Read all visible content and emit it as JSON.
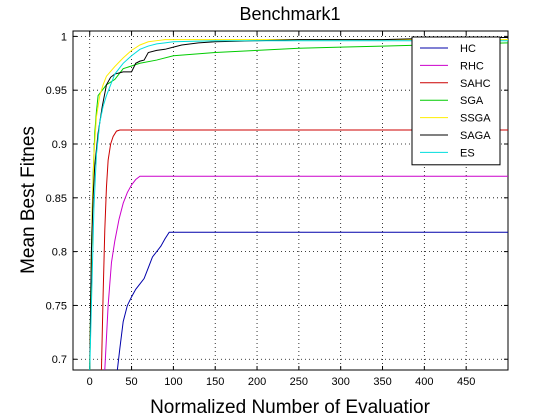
{
  "chart_data": {
    "type": "line",
    "title": "Benchmark1",
    "xlabel": "Normalized Number of Evaluatior",
    "ylabel": "Mean Best Fitnes",
    "xlim": [
      -20,
      500
    ],
    "ylim": [
      0.69,
      1.005
    ],
    "xticks": [
      0,
      50,
      100,
      150,
      200,
      250,
      300,
      350,
      400,
      450
    ],
    "yticks": [
      0.7,
      0.75,
      0.8,
      0.85,
      0.9,
      0.95,
      1
    ],
    "ytick_labels": [
      "0.7",
      "0.75",
      "0.8",
      "0.85",
      "0.9",
      "0.95",
      "1"
    ],
    "grid": true,
    "legend_position": "top-right",
    "series": [
      {
        "name": "HC",
        "color": "#0000aa",
        "x": [
          33,
          36,
          40,
          45,
          50,
          55,
          60,
          65,
          70,
          75,
          80,
          85,
          90,
          95,
          100,
          500
        ],
        "y": [
          0.69,
          0.71,
          0.735,
          0.75,
          0.758,
          0.765,
          0.77,
          0.775,
          0.785,
          0.795,
          0.8,
          0.805,
          0.812,
          0.818,
          0.818,
          0.818
        ]
      },
      {
        "name": "RHC",
        "color": "#cc00cc",
        "x": [
          18,
          22,
          26,
          30,
          35,
          40,
          45,
          50,
          55,
          60,
          500
        ],
        "y": [
          0.69,
          0.75,
          0.79,
          0.81,
          0.83,
          0.845,
          0.855,
          0.862,
          0.867,
          0.87,
          0.87
        ]
      },
      {
        "name": "SAHC",
        "color": "#cc0000",
        "x": [
          14,
          16,
          18,
          20,
          22,
          25,
          28,
          32,
          36,
          500
        ],
        "y": [
          0.69,
          0.76,
          0.82,
          0.86,
          0.885,
          0.9,
          0.907,
          0.912,
          0.913,
          0.913
        ]
      },
      {
        "name": "SGA",
        "color": "#00cc00",
        "x": [
          0,
          2,
          4,
          6,
          8,
          10,
          15,
          20,
          30,
          40,
          60,
          80,
          100,
          150,
          200,
          250,
          300,
          350,
          400,
          450,
          500
        ],
        "y": [
          0.69,
          0.8,
          0.87,
          0.91,
          0.93,
          0.945,
          0.95,
          0.955,
          0.96,
          0.97,
          0.975,
          0.978,
          0.982,
          0.985,
          0.987,
          0.989,
          0.99,
          0.991,
          0.992,
          0.993,
          0.994
        ]
      },
      {
        "name": "SSGA",
        "color": "#ffee00",
        "x": [
          0,
          3,
          5,
          8,
          12,
          16,
          20,
          30,
          40,
          50,
          60,
          70,
          80,
          90,
          100,
          150,
          200,
          300,
          400,
          500
        ],
        "y": [
          0.69,
          0.84,
          0.89,
          0.925,
          0.945,
          0.955,
          0.963,
          0.972,
          0.98,
          0.987,
          0.992,
          0.995,
          0.996,
          0.997,
          0.997,
          0.997,
          0.997,
          0.997,
          0.997,
          0.997
        ]
      },
      {
        "name": "SAGA",
        "color": "#000000",
        "x": [
          0,
          2,
          4,
          6,
          10,
          15,
          20,
          25,
          30,
          40,
          50,
          55,
          60,
          65,
          70,
          80,
          90,
          100,
          110,
          130,
          150,
          200,
          250,
          300,
          350,
          400,
          450,
          500
        ],
        "y": [
          0.69,
          0.8,
          0.85,
          0.88,
          0.91,
          0.935,
          0.955,
          0.962,
          0.965,
          0.967,
          0.967,
          0.975,
          0.977,
          0.978,
          0.985,
          0.987,
          0.988,
          0.99,
          0.992,
          0.994,
          0.995,
          0.996,
          0.997,
          0.997,
          0.997,
          0.998,
          0.999,
          0.999
        ]
      },
      {
        "name": "ES",
        "color": "#00dddd",
        "x": [
          0,
          3,
          5,
          8,
          12,
          16,
          20,
          25,
          30,
          40,
          50,
          60,
          70,
          80,
          90,
          100,
          150,
          200,
          300,
          400,
          500
        ],
        "y": [
          0.69,
          0.78,
          0.84,
          0.89,
          0.92,
          0.935,
          0.945,
          0.955,
          0.965,
          0.975,
          0.982,
          0.988,
          0.991,
          0.993,
          0.994,
          0.995,
          0.996,
          0.996,
          0.996,
          0.996,
          0.996
        ]
      }
    ]
  }
}
